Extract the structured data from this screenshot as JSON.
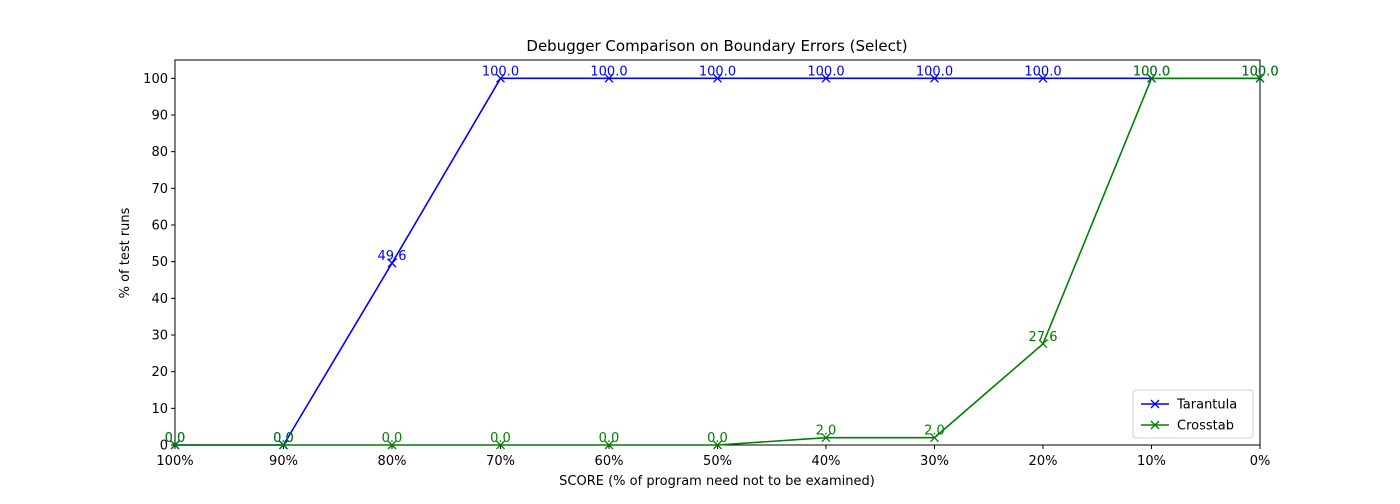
{
  "chart_data": {
    "type": "line",
    "title": "Debugger Comparison on Boundary Errors (Select)",
    "xlabel": "SCORE (% of program need not to be examined)",
    "ylabel": "% of test runs",
    "categories": [
      "100%",
      "90%",
      "80%",
      "70%",
      "60%",
      "50%",
      "40%",
      "30%",
      "20%",
      "10%",
      "0%"
    ],
    "yticks": [
      0,
      10,
      20,
      30,
      40,
      50,
      60,
      70,
      80,
      90,
      100
    ],
    "ylim": [
      0,
      105
    ],
    "grid": false,
    "legend_position": "bottom-right",
    "series": [
      {
        "name": "Tarantula",
        "color": "#0000ff",
        "marker": "x",
        "values": [
          0.0,
          0.0,
          49.6,
          100.0,
          100.0,
          100.0,
          100.0,
          100.0,
          100.0,
          100.0,
          100.0
        ],
        "labels": [
          "0.0",
          "0.0",
          "49.6",
          "100.0",
          "100.0",
          "100.0",
          "100.0",
          "100.0",
          "100.0",
          "100.0",
          "100.0"
        ]
      },
      {
        "name": "Crosstab",
        "color": "#008000",
        "marker": "x",
        "values": [
          0.0,
          0.0,
          0.0,
          0.0,
          0.0,
          0.0,
          2.0,
          2.0,
          27.6,
          100.0,
          100.0
        ],
        "labels": [
          "0.0",
          "0.0",
          "0.0",
          "0.0",
          "0.0",
          "0.0",
          "2.0",
          "2.0",
          "27.6",
          "100.0",
          "100.0"
        ]
      }
    ]
  }
}
